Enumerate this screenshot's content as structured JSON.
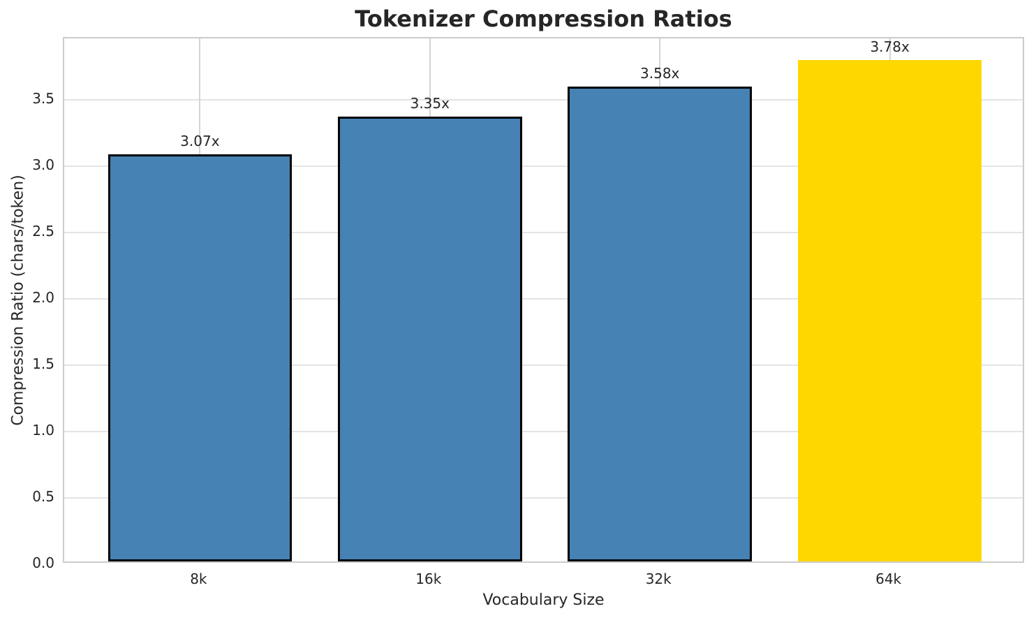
{
  "chart_data": {
    "type": "bar",
    "title": "Tokenizer Compression Ratios",
    "xlabel": "Vocabulary Size",
    "ylabel": "Compression Ratio (chars/token)",
    "categories": [
      "8k",
      "16k",
      "32k",
      "64k"
    ],
    "values": [
      3.07,
      3.35,
      3.58,
      3.78
    ],
    "bar_value_labels": [
      "3.07x",
      "3.35x",
      "3.58x",
      "3.78x"
    ],
    "bar_colors": [
      "#4682B4",
      "#4682B4",
      "#4682B4",
      "#FFD700"
    ],
    "bar_edge_colors": [
      "#000000",
      "#000000",
      "#000000",
      "transparent"
    ],
    "highlight_color": "#FFD700",
    "base_color": "#4682B4",
    "ylim": [
      0,
      3.963
    ],
    "yticks": [
      0.0,
      0.5,
      1.0,
      1.5,
      2.0,
      2.5,
      3.0,
      3.5
    ],
    "ytick_labels": [
      "0.0",
      "0.5",
      "1.0",
      "1.5",
      "2.0",
      "2.5",
      "3.0",
      "3.5"
    ],
    "grid": true,
    "legend_position": "none",
    "text_color": "#262626"
  }
}
